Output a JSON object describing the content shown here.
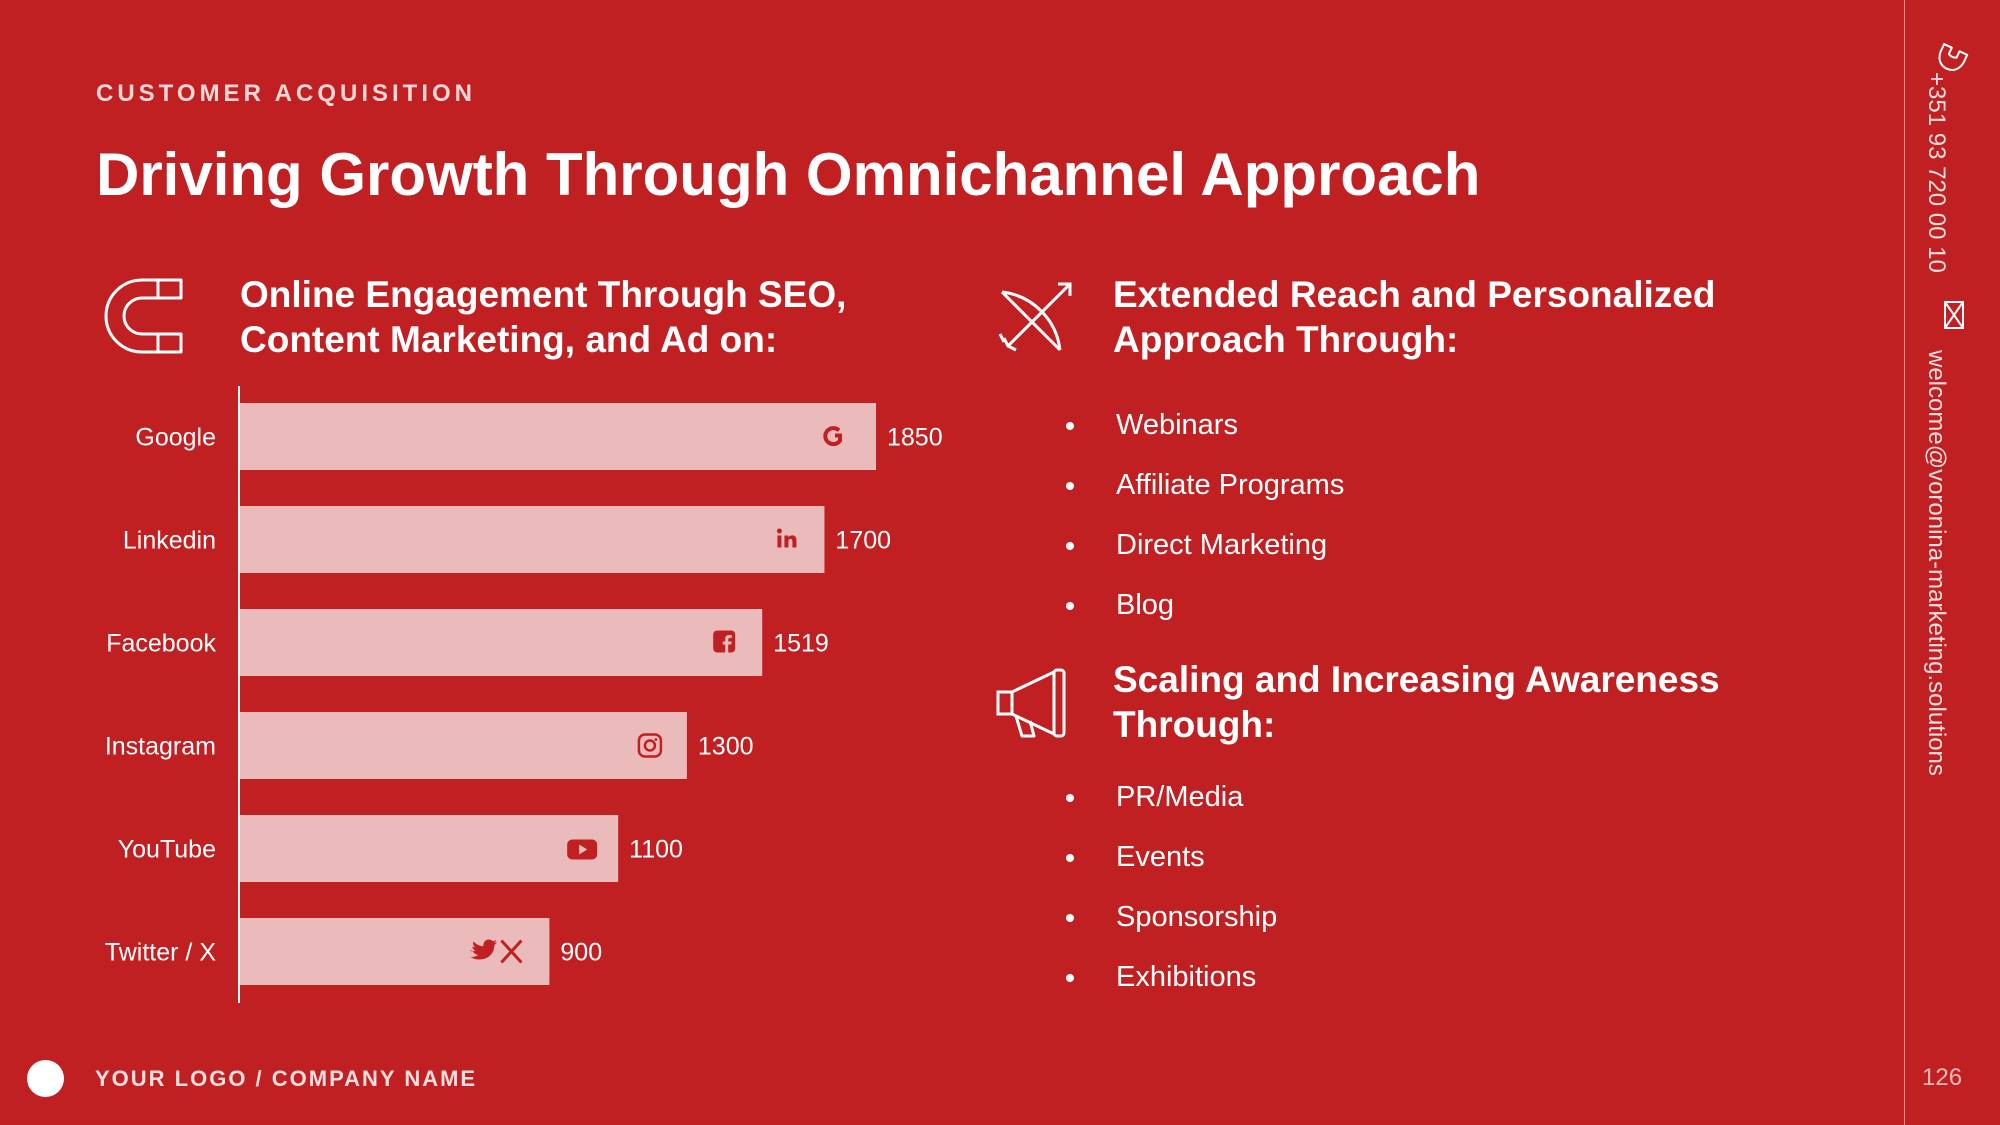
{
  "slide": {
    "kicker": "CUSTOMER ACQUISITION",
    "title": "Driving Growth Through Omnichannel Approach"
  },
  "left_section": {
    "icon": "magnet-icon",
    "title_line1": "Online Engagement Through SEO,",
    "title_line2": "Content Marketing, and Ad on:"
  },
  "chart_data": {
    "type": "bar",
    "orientation": "horizontal",
    "categories": [
      "Google",
      "Linkedin",
      "Facebook",
      "Instagram",
      "YouTube",
      "Twitter / X"
    ],
    "values": [
      1850,
      1700,
      1519,
      1300,
      1100,
      900
    ],
    "icons": [
      "google-icon",
      "linkedin-icon",
      "facebook-icon",
      "instagram-icon",
      "youtube-icon",
      "twitter-x-icon"
    ],
    "data_labels": [
      "1850",
      "1700",
      "1519",
      "1300",
      "1100",
      "900"
    ],
    "bar_color": "#ebbbbb",
    "icon_color": "#c12022",
    "grid": false,
    "legend": "none"
  },
  "right_sections": [
    {
      "icon": "bow-arrow-icon",
      "title_line1": "Extended Reach and Personalized",
      "title_line2": "Approach Through:",
      "items": [
        "Webinars",
        "Affiliate Programs",
        "Direct Marketing",
        "Blog"
      ]
    },
    {
      "icon": "megaphone-icon",
      "title_line1": "Scaling and Increasing Awareness",
      "title_line2": "Through:",
      "items": [
        "PR/Media",
        "Events",
        "Sponsorship",
        "Exhibitions"
      ]
    }
  ],
  "sidebar": {
    "phone_icon": "phone-icon",
    "phone": "+351 93 720 00 10",
    "email_icon": "mail-icon",
    "email": "welcome@voronina-marketing.solutions"
  },
  "footer": {
    "logo_text": "YOUR LOGO / COMPANY NAME",
    "page_number": "126"
  },
  "colors": {
    "background": "#c12022",
    "text": "#ffffff",
    "bar": "#ebbbbb"
  }
}
